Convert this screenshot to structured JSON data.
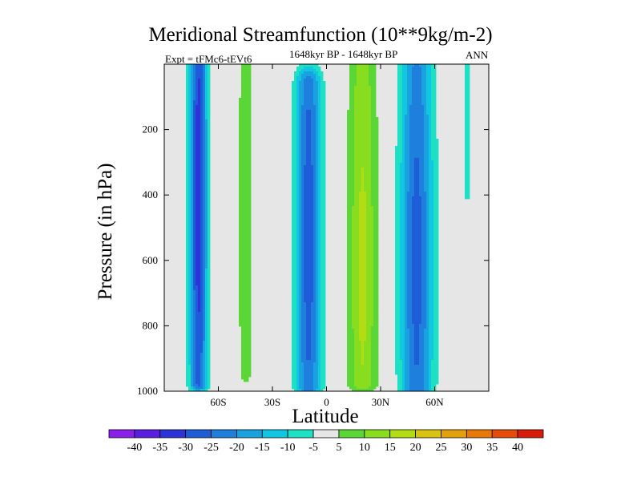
{
  "chart_data": {
    "type": "heatmap",
    "title": "Meridional Streamfunction (10**9kg/m-2)",
    "subtitle": "1648kyr BP - 1648kyr BP",
    "experiment_label": "Expt = tFMc6-tEVt6",
    "season": "ANN",
    "xlabel": "Latitude",
    "ylabel": "Pressure (in hPa)",
    "x_range": [
      -90,
      90
    ],
    "y_range": [
      0,
      1000
    ],
    "y_inverted": true,
    "x_ticks": [
      {
        "value": -60,
        "label": "60S"
      },
      {
        "value": -30,
        "label": "30S"
      },
      {
        "value": 0,
        "label": "0"
      },
      {
        "value": 30,
        "label": "30N"
      },
      {
        "value": 60,
        "label": "60N"
      }
    ],
    "y_ticks": [
      {
        "value": 200,
        "label": "200"
      },
      {
        "value": 400,
        "label": "400"
      },
      {
        "value": 600,
        "label": "600"
      },
      {
        "value": 800,
        "label": "800"
      },
      {
        "value": 1000,
        "label": "1000"
      }
    ],
    "colorbar": {
      "levels": [
        -40,
        -35,
        -30,
        -25,
        -20,
        -15,
        -10,
        -5,
        5,
        10,
        15,
        20,
        25,
        30,
        35,
        40
      ],
      "colors": [
        "#8a20e8",
        "#5a1ee0",
        "#2c34d8",
        "#1e5cd8",
        "#1f7fdc",
        "#1aa2e0",
        "#10c6e0",
        "#1ee0c4",
        "#e6e6e6",
        "#5ad636",
        "#88de1e",
        "#b4dc14",
        "#d8c410",
        "#e4a00c",
        "#e87808",
        "#e44c08",
        "#d81e08"
      ]
    },
    "features": [
      {
        "name": "southern-polar-cell",
        "center_lat": -71,
        "center_p": 400,
        "lat_halfwidth": 5,
        "p_range": [
          0,
          980
        ],
        "peak": -33
      },
      {
        "name": "southern-weak-positive",
        "center_lat": -45,
        "center_p": 450,
        "lat_halfwidth": 6,
        "p_range": [
          0,
          960
        ],
        "peak": 7
      },
      {
        "name": "southern-hadley-cell",
        "center_lat": -10,
        "center_p": 520,
        "lat_halfwidth": 7,
        "p_range": [
          60,
          990
        ],
        "peak": -28
      },
      {
        "name": "northern-hadley-cell",
        "center_lat": 20,
        "center_p": 620,
        "lat_halfwidth": 8,
        "p_range": [
          0,
          980
        ],
        "peak": 16
      },
      {
        "name": "northern-ferrel-cell",
        "center_lat": 50,
        "center_p": 600,
        "lat_halfwidth": 9,
        "p_range": [
          0,
          1000
        ],
        "peak": -27
      },
      {
        "name": "northern-polar-sliver",
        "center_lat": 78,
        "center_p": 300,
        "lat_halfwidth": 2,
        "p_range": [
          0,
          400
        ],
        "peak": -8
      }
    ]
  }
}
